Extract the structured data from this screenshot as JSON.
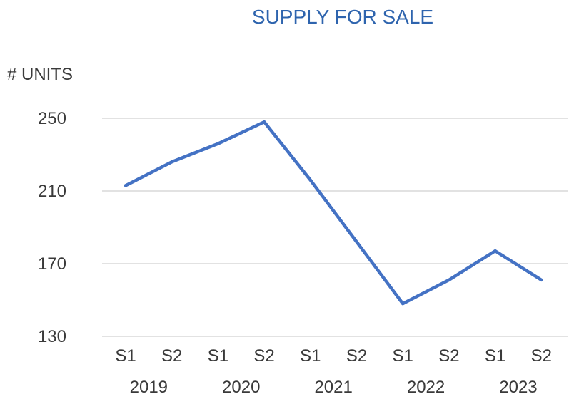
{
  "chart_data": {
    "type": "line",
    "title": "SUPPLY FOR SALE",
    "ylabel": "# UNITS",
    "xlabel": "",
    "ylim": [
      130,
      250
    ],
    "yticks": [
      "130",
      "170",
      "210",
      "250"
    ],
    "grid": true,
    "categories": [
      "S1",
      "S2",
      "S1",
      "S2",
      "S1",
      "S2",
      "S1",
      "S2",
      "S1",
      "S2"
    ],
    "groups": [
      "2019",
      "2020",
      "2021",
      "2022",
      "2023"
    ],
    "series": [
      {
        "values": [
          213,
          226,
          236,
          248,
          216,
          182,
          148,
          161,
          177,
          161
        ]
      }
    ],
    "colors": {
      "line": "#4472c4",
      "title": "#2e64ae",
      "grid": "#d9d9d9"
    }
  }
}
